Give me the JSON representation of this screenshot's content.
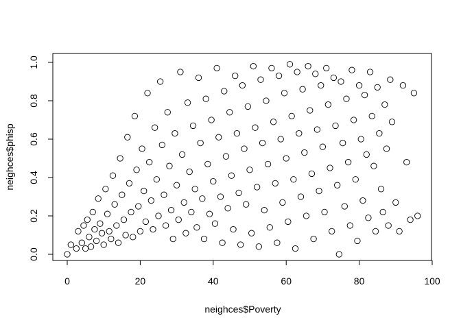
{
  "chart_data": {
    "type": "scatter",
    "title": "",
    "xlabel": "neighces$Poverty",
    "ylabel": "neighces$phisp",
    "xlim": [
      0,
      100
    ],
    "ylim": [
      0,
      1
    ],
    "x_ticks": [
      "0",
      "20",
      "40",
      "60",
      "80",
      "100"
    ],
    "y_ticks": [
      "0.0",
      "0.2",
      "0.4",
      "0.6",
      "0.8",
      "1.0"
    ],
    "x_tick_values": [
      0,
      20,
      40,
      60,
      80,
      100
    ],
    "y_tick_values": [
      0,
      0.2,
      0.4,
      0.6,
      0.8,
      1.0
    ],
    "marker": "open-circle",
    "marker_color": "#000000",
    "grid": false,
    "legend": "none",
    "series": [
      {
        "points": [
          [
            0,
            0
          ],
          [
            1,
            0.05
          ],
          [
            2.5,
            0.03
          ],
          [
            3,
            0.12
          ],
          [
            4,
            0.06
          ],
          [
            4.5,
            0.15
          ],
          [
            5,
            0.03
          ],
          [
            5.5,
            0.18
          ],
          [
            6,
            0.09
          ],
          [
            6.5,
            0.04
          ],
          [
            7,
            0.22
          ],
          [
            7.5,
            0.13
          ],
          [
            8,
            0.07
          ],
          [
            8.5,
            0.29
          ],
          [
            9,
            0.16
          ],
          [
            9.5,
            0.11
          ],
          [
            10,
            0.05
          ],
          [
            10.5,
            0.34
          ],
          [
            11,
            0.21
          ],
          [
            11.5,
            0.12
          ],
          [
            12,
            0.08
          ],
          [
            12.5,
            0.41
          ],
          [
            13,
            0.26
          ],
          [
            13.5,
            0.15
          ],
          [
            14,
            0.06
          ],
          [
            14.5,
            0.5
          ],
          [
            15,
            0.31
          ],
          [
            15.5,
            0.18
          ],
          [
            16,
            0.1
          ],
          [
            16.5,
            0.61
          ],
          [
            17,
            0.37
          ],
          [
            17.5,
            0.22
          ],
          [
            18,
            0.09
          ],
          [
            18.5,
            0.72
          ],
          [
            19,
            0.44
          ],
          [
            19.5,
            0.25
          ],
          [
            20,
            0.12
          ],
          [
            20.5,
            0.55
          ],
          [
            21,
            0.33
          ],
          [
            21.5,
            0.17
          ],
          [
            22,
            0.84
          ],
          [
            22.5,
            0.48
          ],
          [
            23,
            0.28
          ],
          [
            23.5,
            0.13
          ],
          [
            24,
            0.66
          ],
          [
            24.5,
            0.39
          ],
          [
            25,
            0.2
          ],
          [
            25.5,
            0.9
          ],
          [
            26,
            0.57
          ],
          [
            26.5,
            0.31
          ],
          [
            27,
            0.15
          ],
          [
            27.5,
            0.74
          ],
          [
            28,
            0.46
          ],
          [
            28.5,
            0.23
          ],
          [
            29,
            0.08
          ],
          [
            29.5,
            0.63
          ],
          [
            30,
            0.36
          ],
          [
            30.5,
            0.18
          ],
          [
            31,
            0.95
          ],
          [
            31.5,
            0.52
          ],
          [
            32,
            0.27
          ],
          [
            32.5,
            0.11
          ],
          [
            33,
            0.79
          ],
          [
            33.5,
            0.43
          ],
          [
            34,
            0.22
          ],
          [
            34.5,
            0.67
          ],
          [
            35,
            0.34
          ],
          [
            35.5,
            0.14
          ],
          [
            36,
            0.92
          ],
          [
            36.5,
            0.58
          ],
          [
            37,
            0.29
          ],
          [
            37.5,
            0.08
          ],
          [
            38,
            0.81
          ],
          [
            38.5,
            0.47
          ],
          [
            39,
            0.21
          ],
          [
            39.5,
            0.7
          ],
          [
            40,
            0.38
          ],
          [
            40.5,
            0.16
          ],
          [
            41,
            0.97
          ],
          [
            41.5,
            0.61
          ],
          [
            42,
            0.3
          ],
          [
            42.5,
            0.06
          ],
          [
            43,
            0.85
          ],
          [
            43.5,
            0.51
          ],
          [
            44,
            0.24
          ],
          [
            44.5,
            0.74
          ],
          [
            45,
            0.41
          ],
          [
            45.5,
            0.13
          ],
          [
            46,
            0.93
          ],
          [
            46.5,
            0.63
          ],
          [
            47,
            0.32
          ],
          [
            47.5,
            0.05
          ],
          [
            48,
            0.88
          ],
          [
            48.5,
            0.55
          ],
          [
            49,
            0.26
          ],
          [
            49.5,
            0.77
          ],
          [
            50,
            0.44
          ],
          [
            50.5,
            0.11
          ],
          [
            51,
            0.98
          ],
          [
            51.5,
            0.66
          ],
          [
            52,
            0.35
          ],
          [
            52.5,
            0.04
          ],
          [
            53,
            0.91
          ],
          [
            53.5,
            0.58
          ],
          [
            54,
            0.23
          ],
          [
            54.5,
            0.8
          ],
          [
            55,
            0.47
          ],
          [
            55.5,
            0.14
          ],
          [
            56,
            0.97
          ],
          [
            56.5,
            0.69
          ],
          [
            57,
            0.37
          ],
          [
            57.5,
            0.06
          ],
          [
            58,
            0.93
          ],
          [
            58.5,
            0.6
          ],
          [
            59,
            0.27
          ],
          [
            59.5,
            0.84
          ],
          [
            60,
            0.5
          ],
          [
            60.5,
            0.17
          ],
          [
            61,
            0.99
          ],
          [
            61.5,
            0.72
          ],
          [
            62,
            0.39
          ],
          [
            62.5,
            0.03
          ],
          [
            63,
            0.95
          ],
          [
            63.5,
            0.63
          ],
          [
            64,
            0.3
          ],
          [
            64.5,
            0.86
          ],
          [
            65,
            0.53
          ],
          [
            65.5,
            0.2
          ],
          [
            66,
            0.98
          ],
          [
            66.5,
            0.75
          ],
          [
            67,
            0.42
          ],
          [
            67.5,
            0.08
          ],
          [
            68,
            0.94
          ],
          [
            68.5,
            0.65
          ],
          [
            69,
            0.33
          ],
          [
            69.5,
            0.88
          ],
          [
            70,
            0.56
          ],
          [
            70.5,
            0.22
          ],
          [
            71,
            0.97
          ],
          [
            71.5,
            0.78
          ],
          [
            72,
            0.45
          ],
          [
            72.5,
            0.12
          ],
          [
            73,
            0.92
          ],
          [
            73.5,
            0.67
          ],
          [
            74,
            0.36
          ],
          [
            74.5,
            0.0
          ],
          [
            75,
            0.9
          ],
          [
            75.5,
            0.58
          ],
          [
            76,
            0.25
          ],
          [
            76.5,
            0.81
          ],
          [
            77,
            0.48
          ],
          [
            77.5,
            0.15
          ],
          [
            78,
            0.96
          ],
          [
            78.5,
            0.7
          ],
          [
            79,
            0.39
          ],
          [
            79.5,
            0.07
          ],
          [
            80,
            0.88
          ],
          [
            80.5,
            0.6
          ],
          [
            81,
            0.28
          ],
          [
            81.5,
            0.83
          ],
          [
            82,
            0.52
          ],
          [
            82.5,
            0.19
          ],
          [
            83,
            0.95
          ],
          [
            83.5,
            0.72
          ],
          [
            84,
            0.46
          ],
          [
            84.5,
            0.12
          ],
          [
            85,
            0.87
          ],
          [
            85.5,
            0.63
          ],
          [
            86,
            0.34
          ],
          [
            86.5,
            0.22
          ],
          [
            87,
            0.78
          ],
          [
            87.5,
            0.55
          ],
          [
            88,
            0.15
          ],
          [
            88.5,
            0.91
          ],
          [
            89,
            0.69
          ],
          [
            90,
            0.27
          ],
          [
            91,
            0.12
          ],
          [
            92,
            0.88
          ],
          [
            93,
            0.48
          ],
          [
            94,
            0.18
          ],
          [
            95,
            0.84
          ],
          [
            96,
            0.2
          ]
        ]
      }
    ]
  }
}
